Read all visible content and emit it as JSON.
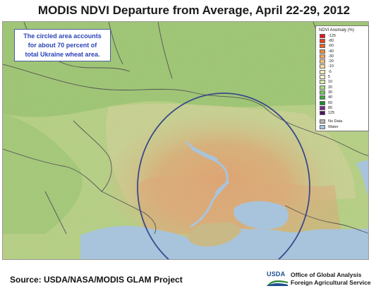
{
  "title": "MODIS NDVI Departure from Average, April 22-29, 2012",
  "callout": {
    "line1": "The circled area accounts",
    "line2": "for about 70 percent of",
    "line3": "total Ukraine wheat area."
  },
  "legend": {
    "title": "NDVI Anomaly (%)",
    "classes": [
      {
        "label": "-125",
        "color": "#e8101a"
      },
      {
        "label": "-80",
        "color": "#e84018"
      },
      {
        "label": "-60",
        "color": "#e8641e"
      },
      {
        "label": "-40",
        "color": "#ec8a3c"
      },
      {
        "label": "-30",
        "color": "#f0a45e"
      },
      {
        "label": "-20",
        "color": "#f4c07c"
      },
      {
        "label": "-10",
        "color": "#f8da9c"
      },
      {
        "label": "-5",
        "color": "#fbedbe"
      },
      {
        "label": "5",
        "color": "#fbfbd4"
      },
      {
        "label": "10",
        "color": "#d6f0a8"
      },
      {
        "label": "20",
        "color": "#a6dc80"
      },
      {
        "label": "30",
        "color": "#6ec65a"
      },
      {
        "label": "40",
        "color": "#3aa83c"
      },
      {
        "label": "60",
        "color": "#1a8a2e"
      },
      {
        "label": "80",
        "color": "#7a2a8a"
      },
      {
        "label": "125",
        "color": "#4a1460"
      }
    ],
    "extra": [
      {
        "label": "No Data",
        "color": "#b4b4b4"
      },
      {
        "label": "Water",
        "color": "#a8c4dc"
      }
    ]
  },
  "source": "Source: USDA/NASA/MODIS GLAM Project",
  "usda": {
    "logo_word": "USDA",
    "line1": "Office of Global Analysis",
    "line2": "Foreign Agricultural Service"
  },
  "colors": {
    "circle": "#3a4a8a",
    "water": "#a8c4dc",
    "callout_text": "#2a44b8",
    "usda_blue": "#1e4f8f"
  }
}
